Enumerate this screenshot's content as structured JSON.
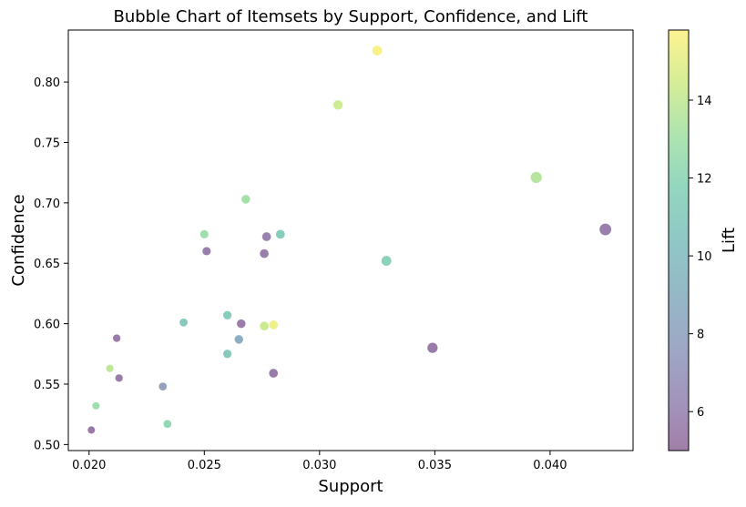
{
  "chart_data": {
    "type": "scatter",
    "title": "Bubble Chart of Itemsets by Support, Confidence, and Lift",
    "xlabel": "Support",
    "ylabel": "Confidence",
    "xlim": [
      0.0191,
      0.0436
    ],
    "ylim": [
      0.495,
      0.843
    ],
    "xticks": [
      "0.020",
      "0.025",
      "0.030",
      "0.035",
      "0.040"
    ],
    "yticks": [
      "0.50",
      "0.55",
      "0.60",
      "0.65",
      "0.70",
      "0.75",
      "0.80"
    ],
    "colorbar": {
      "label": "Lift",
      "range": [
        5.0,
        15.8
      ],
      "ticks": [
        "6",
        "8",
        "10",
        "12",
        "14"
      ],
      "colormap": "viridis"
    },
    "grid": false,
    "size_encodes": "support",
    "points": [
      {
        "x": 0.0201,
        "y": 0.512,
        "lift": 5.3
      },
      {
        "x": 0.0203,
        "y": 0.532,
        "lift": 12.8
      },
      {
        "x": 0.0209,
        "y": 0.563,
        "lift": 13.9
      },
      {
        "x": 0.0212,
        "y": 0.588,
        "lift": 5.5
      },
      {
        "x": 0.0213,
        "y": 0.555,
        "lift": 5.5
      },
      {
        "x": 0.0232,
        "y": 0.548,
        "lift": 7.8
      },
      {
        "x": 0.0234,
        "y": 0.517,
        "lift": 12.2
      },
      {
        "x": 0.0241,
        "y": 0.601,
        "lift": 11.0
      },
      {
        "x": 0.025,
        "y": 0.674,
        "lift": 12.8
      },
      {
        "x": 0.0251,
        "y": 0.66,
        "lift": 5.5
      },
      {
        "x": 0.026,
        "y": 0.607,
        "lift": 11.3
      },
      {
        "x": 0.026,
        "y": 0.575,
        "lift": 11.0
      },
      {
        "x": 0.0265,
        "y": 0.587,
        "lift": 8.8
      },
      {
        "x": 0.0266,
        "y": 0.6,
        "lift": 5.5
      },
      {
        "x": 0.0268,
        "y": 0.703,
        "lift": 13.0
      },
      {
        "x": 0.0276,
        "y": 0.658,
        "lift": 5.6
      },
      {
        "x": 0.0276,
        "y": 0.598,
        "lift": 14.2
      },
      {
        "x": 0.0277,
        "y": 0.672,
        "lift": 5.8
      },
      {
        "x": 0.028,
        "y": 0.599,
        "lift": 15.3
      },
      {
        "x": 0.028,
        "y": 0.559,
        "lift": 5.5
      },
      {
        "x": 0.0283,
        "y": 0.674,
        "lift": 11.3
      },
      {
        "x": 0.0308,
        "y": 0.781,
        "lift": 14.3
      },
      {
        "x": 0.0325,
        "y": 0.826,
        "lift": 15.6
      },
      {
        "x": 0.0329,
        "y": 0.652,
        "lift": 11.8
      },
      {
        "x": 0.0349,
        "y": 0.58,
        "lift": 5.5
      },
      {
        "x": 0.0394,
        "y": 0.721,
        "lift": 13.6
      },
      {
        "x": 0.0424,
        "y": 0.678,
        "lift": 5.7
      }
    ]
  }
}
